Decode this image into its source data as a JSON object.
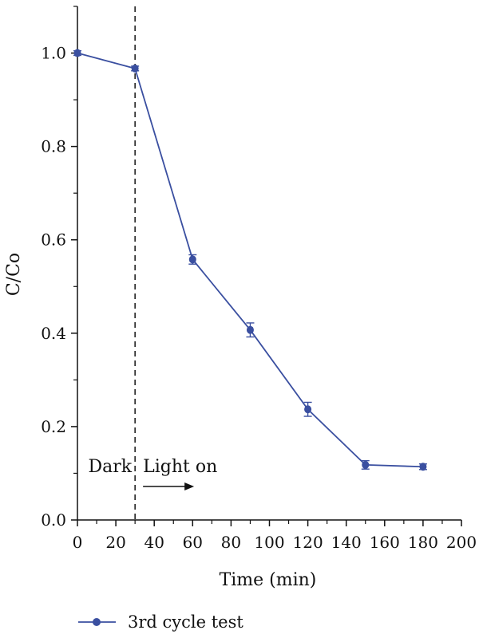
{
  "chart_data": {
    "type": "line",
    "xlabel": "Time (min)",
    "ylabel": "C/Co",
    "xlim": [
      0,
      200
    ],
    "ylim": [
      0,
      1.1
    ],
    "xticks": [
      0,
      20,
      40,
      60,
      80,
      100,
      120,
      140,
      160,
      180,
      200
    ],
    "yticks": [
      0.0,
      0.2,
      0.4,
      0.6,
      0.8,
      1.0
    ],
    "ytick_labels": [
      "0.0",
      "0.2",
      "0.4",
      "0.6",
      "0.8",
      "1.0"
    ],
    "grid": false,
    "legend_position": "bottom-left",
    "series": [
      {
        "name": "3rd cycle test",
        "color": "#3a4fa0",
        "x": [
          0,
          30,
          60,
          90,
          120,
          150,
          180
        ],
        "y": [
          1.0,
          0.967,
          0.558,
          0.407,
          0.237,
          0.118,
          0.114
        ],
        "err": [
          0.005,
          0.005,
          0.01,
          0.015,
          0.015,
          0.009,
          0.006
        ]
      }
    ],
    "annotations": {
      "divider_x": 30,
      "dark_label": "Dark",
      "light_label": "Light on"
    }
  }
}
